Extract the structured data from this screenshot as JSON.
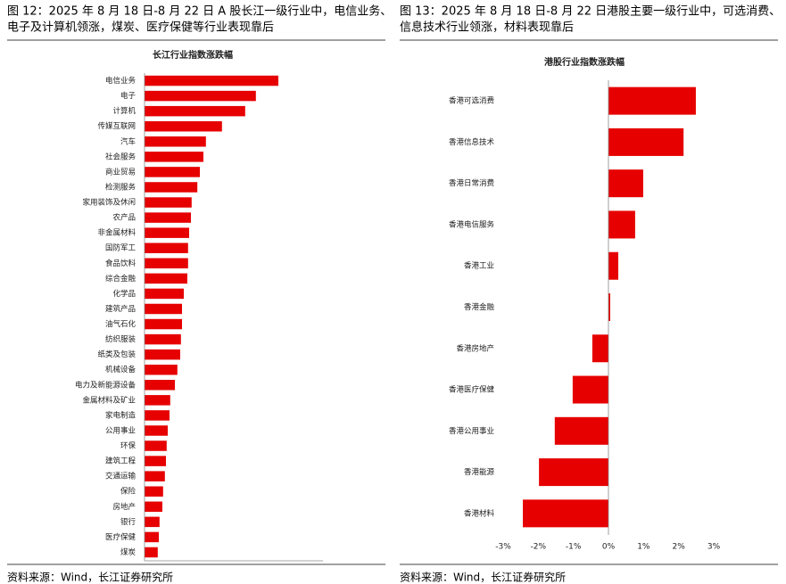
{
  "chart_data": [
    {
      "type": "hbar",
      "caption": [
        "图 12：2025 年 8 月 18 日-8 月 22 日 A 股长江一级行业中，电信业务、",
        "电子及计算机领涨，煤炭、医疗保健等行业表现靠后"
      ],
      "title": "长江行业指数涨跌幅",
      "source": "资料来源：Wind，长江证券研究所",
      "color": "#e60000",
      "categories": [
        "电信业务",
        "电子",
        "计算机",
        "传媒互联网",
        "汽车",
        "社会服务",
        "商业贸易",
        "检测服务",
        "家用装饰及休闲",
        "农产品",
        "非金属材料",
        "国防军工",
        "食品饮料",
        "综合金融",
        "化学品",
        "建筑产品",
        "油气石化",
        "纺织服装",
        "纸类及包装",
        "机械设备",
        "电力及新能源设备",
        "金属材料及矿业",
        "家电制造",
        "公用事业",
        "环保",
        "建筑工程",
        "交通运输",
        "保险",
        "房地产",
        "银行",
        "医疗保健",
        "煤炭"
      ],
      "values": [
        3.75,
        3.12,
        2.82,
        2.17,
        1.72,
        1.65,
        1.55,
        1.48,
        1.32,
        1.3,
        1.25,
        1.22,
        1.22,
        1.2,
        1.1,
        1.05,
        1.05,
        1.02,
        1.0,
        0.92,
        0.85,
        0.72,
        0.7,
        0.65,
        0.62,
        0.6,
        0.57,
        0.52,
        0.5,
        0.42,
        0.4,
        0.37
      ],
      "xlim": [
        0,
        5
      ]
    },
    {
      "type": "hbar",
      "caption": [
        "图 13：2025 年 8 月 18 日-8 月 22 日港股主要一级行业中，可选消费、",
        "信息技术行业领涨，材料表现靠后"
      ],
      "title": "港股行业指数涨跌幅",
      "source": "资料来源：Wind，长江证券研究所",
      "color": "#e60000",
      "categories": [
        "香港可选消费",
        "香港信息技术",
        "香港日常消费",
        "香港电信服务",
        "香港工业",
        "香港金融",
        "香港房地产",
        "香港医疗保健",
        "香港公用事业",
        "香港能源",
        "香港材料"
      ],
      "values": [
        2.49,
        2.14,
        0.99,
        0.76,
        0.28,
        0.05,
        -0.46,
        -1.02,
        -1.53,
        -1.98,
        -2.44
      ],
      "xlim": [
        -3,
        3
      ],
      "xticks": [
        {
          "value": -3,
          "label": "-3%"
        },
        {
          "value": -2,
          "label": "-2%"
        },
        {
          "value": -1,
          "label": "-1%"
        },
        {
          "value": 0,
          "label": "0%"
        },
        {
          "value": 1,
          "label": "1%"
        },
        {
          "value": 2,
          "label": "2%"
        },
        {
          "value": 3,
          "label": "3%"
        }
      ]
    }
  ]
}
